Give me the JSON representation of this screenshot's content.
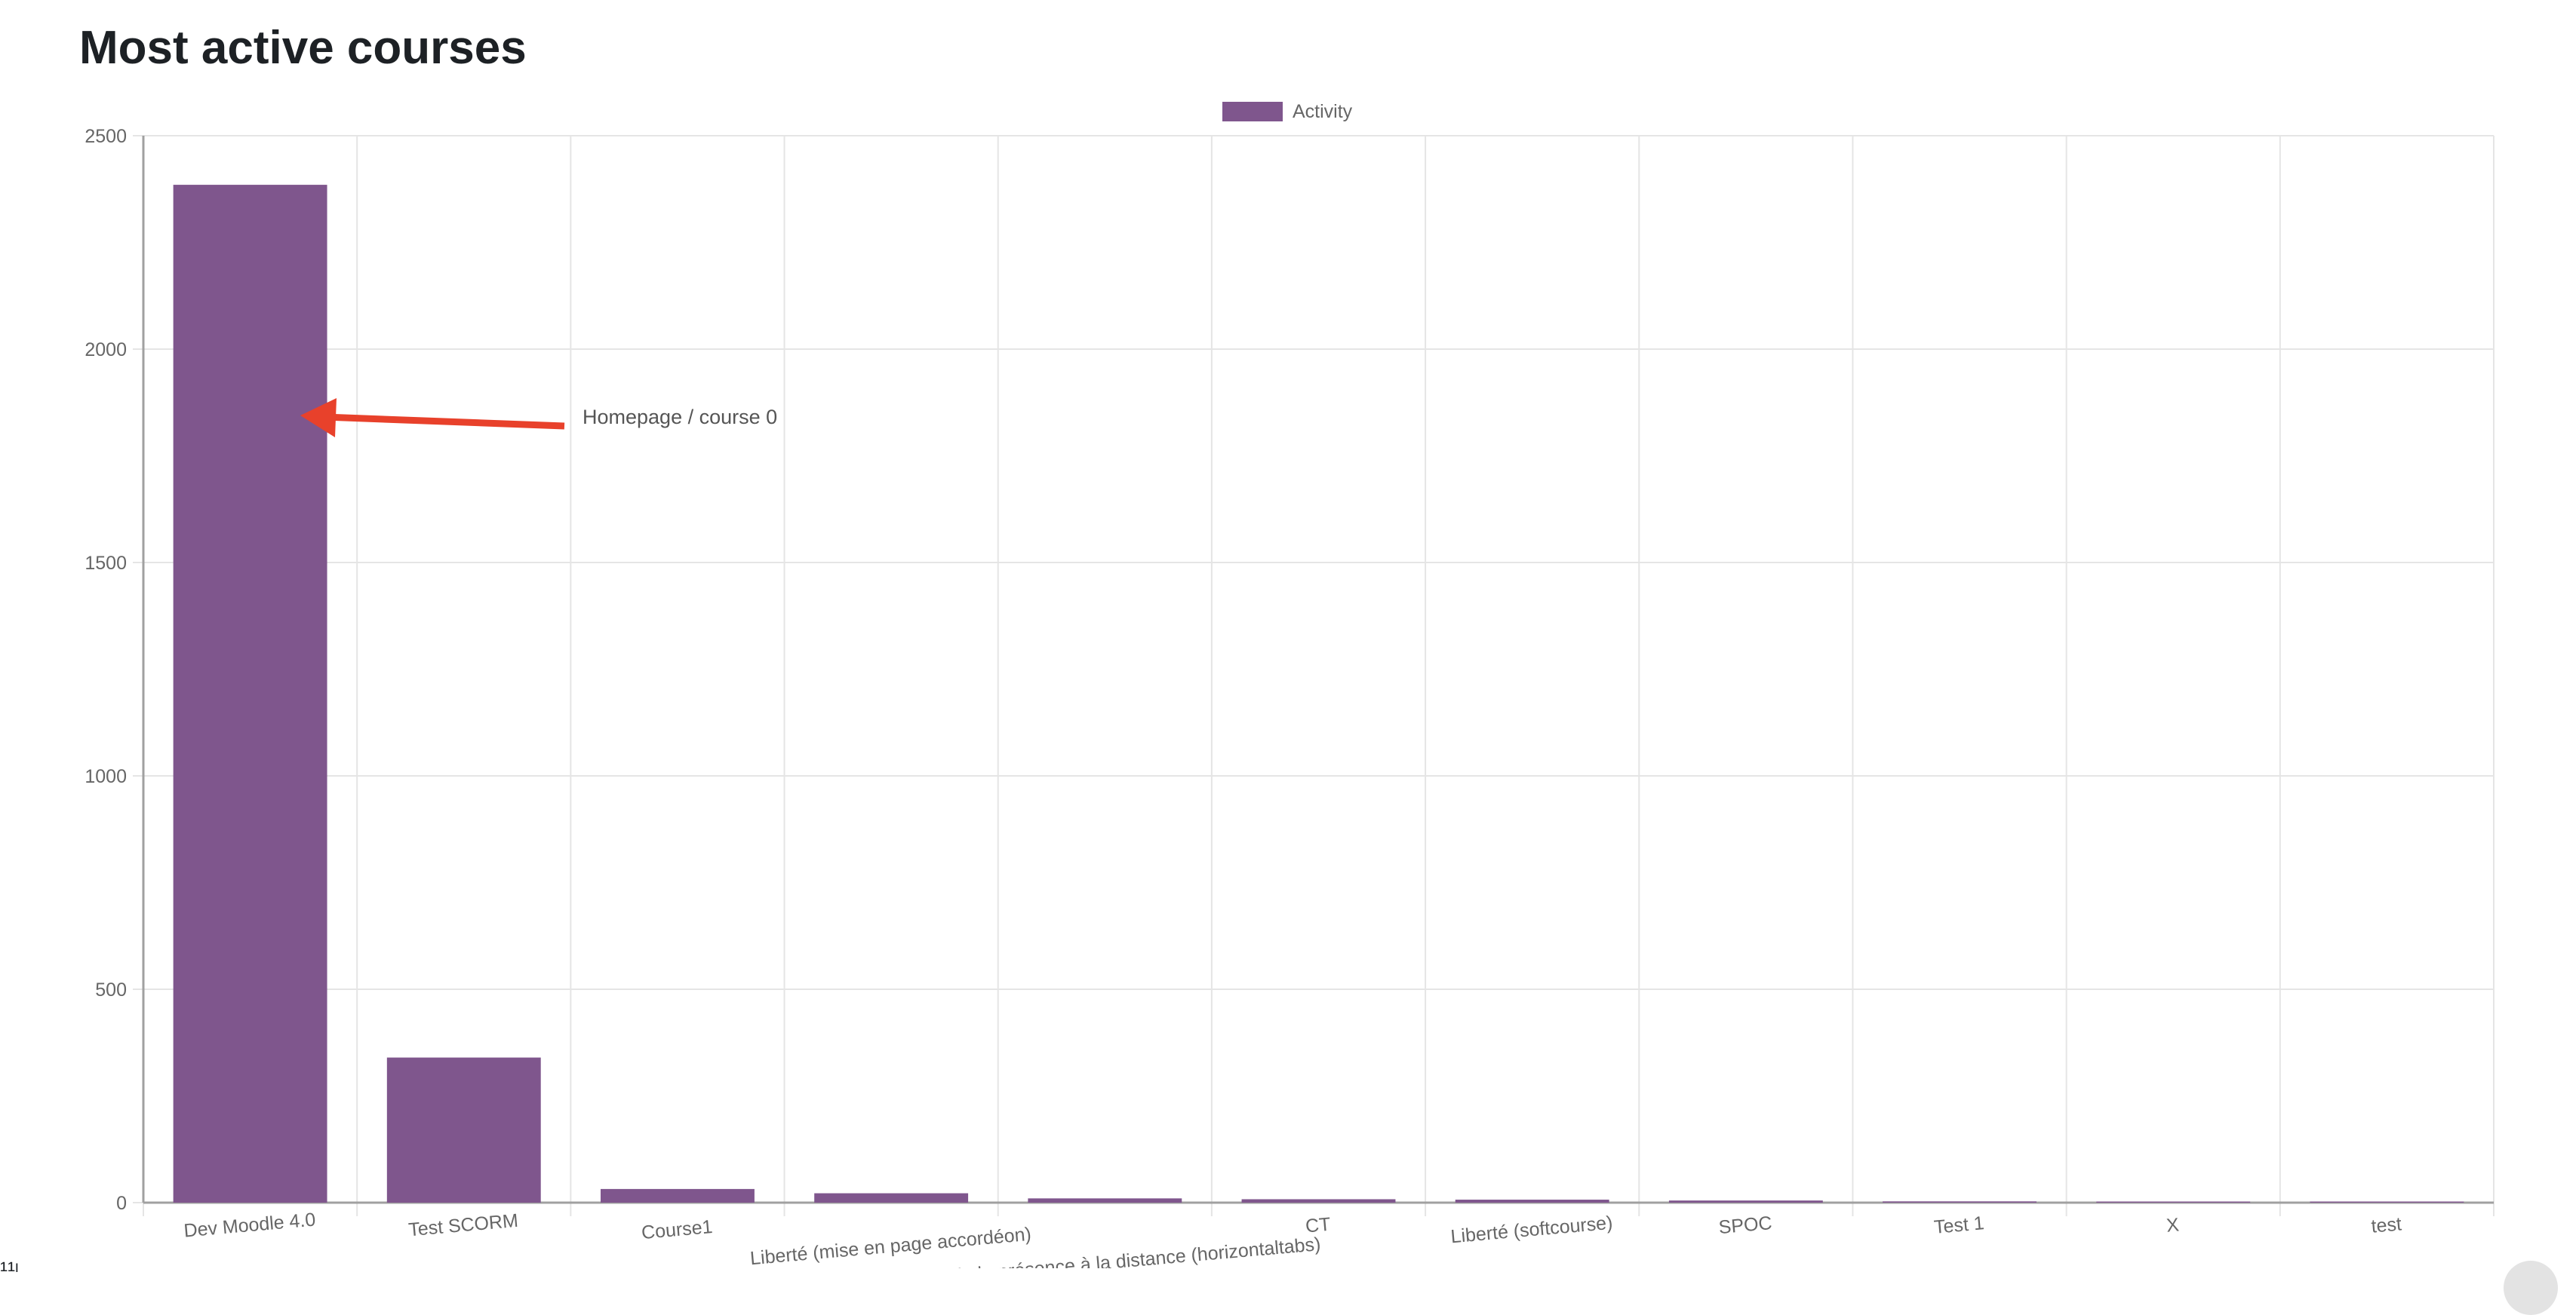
{
  "page": {
    "title": "Most active courses"
  },
  "colors": {
    "bar": "#7f568d",
    "grid": "#e5e5e5",
    "axis": "#a0a0a0",
    "text": "#666666",
    "annotation_arrow": "#e8412b"
  },
  "chart_data": {
    "type": "bar",
    "title": "",
    "xlabel": "",
    "ylabel": "",
    "categories": [
      "Dev Moodle 4.0",
      "Test SCORM",
      "Course1",
      "Liberté (mise en page accordéon)",
      "Passer de la présence à la distance (horizontaltabs)",
      "CT",
      "Liberté (softcourse)",
      "SPOC",
      "Test 1",
      "X",
      "test"
    ],
    "series": [
      {
        "name": "Activity",
        "values": [
          2385,
          340,
          32,
          22,
          10,
          8,
          7,
          5,
          3,
          2,
          1
        ]
      }
    ],
    "ylim": [
      0,
      2500
    ],
    "yticks": [
      0,
      500,
      1000,
      1500,
      2000,
      2500
    ],
    "grid": true,
    "legend": "top-center",
    "annotation": {
      "text": "Homepage / course 0",
      "points_to": "Dev Moodle 4.0"
    }
  }
}
